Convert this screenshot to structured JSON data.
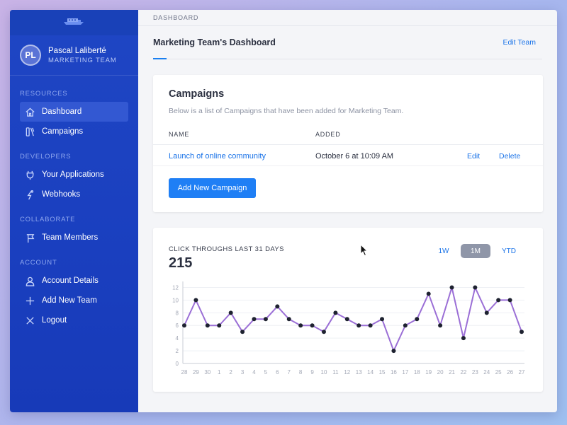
{
  "breadcrumb": "DASHBOARD",
  "profile": {
    "initials": "PL",
    "name": "Pascal Laliberté",
    "team": "MARKETING TEAM"
  },
  "sidebar": {
    "sections": [
      {
        "title": "RESOURCES",
        "items": [
          {
            "label": "Dashboard",
            "icon": "home-icon",
            "active": true
          },
          {
            "label": "Campaigns",
            "icon": "campaigns-icon"
          }
        ]
      },
      {
        "title": "DEVELOPERS",
        "items": [
          {
            "label": "Your Applications",
            "icon": "plug-icon"
          },
          {
            "label": "Webhooks",
            "icon": "webhook-icon"
          }
        ]
      },
      {
        "title": "COLLABORATE",
        "items": [
          {
            "label": "Team Members",
            "icon": "flag-icon"
          }
        ]
      },
      {
        "title": "ACCOUNT",
        "items": [
          {
            "label": "Account Details",
            "icon": "user-icon"
          },
          {
            "label": "Add New Team",
            "icon": "plus-icon"
          },
          {
            "label": "Logout",
            "icon": "close-icon"
          }
        ]
      }
    ]
  },
  "header": {
    "title": "Marketing Team's Dashboard",
    "edit_team": "Edit Team"
  },
  "campaigns": {
    "title": "Campaigns",
    "subtitle": "Below is a list of Campaigns that have been added for Marketing Team.",
    "columns": [
      "NAME",
      "ADDED"
    ],
    "rows": [
      {
        "name": "Launch of online community",
        "added": "October 6 at 10:09 AM",
        "edit": "Edit",
        "delete": "Delete"
      }
    ],
    "add_button": "Add New Campaign"
  },
  "clicks": {
    "label": "CLICK THROUGHS LAST 31 DAYS",
    "total": "215",
    "ranges": [
      "1W",
      "1M",
      "YTD"
    ],
    "active_range": "1M"
  },
  "colors": {
    "accent": "#1a73e8",
    "sidebar": "#1a3fbf",
    "line": "#9b6fd6",
    "button": "#1f7ff5"
  },
  "chart_data": {
    "type": "line",
    "x": [
      "28",
      "29",
      "30",
      "1",
      "2",
      "3",
      "4",
      "5",
      "6",
      "7",
      "8",
      "9",
      "10",
      "11",
      "12",
      "13",
      "14",
      "15",
      "16",
      "17",
      "18",
      "19",
      "20",
      "21",
      "22",
      "23",
      "24",
      "25",
      "26",
      "27"
    ],
    "series": [
      {
        "values": [
          6,
          10,
          6,
          6,
          8,
          5,
          7,
          7,
          9,
          7,
          6,
          6,
          5,
          8,
          7,
          6,
          6,
          7,
          2,
          6,
          7,
          11,
          6,
          12,
          4,
          12,
          8,
          10,
          10,
          5
        ]
      }
    ],
    "yticks": [
      0,
      2,
      4,
      6,
      8,
      10,
      12
    ],
    "ylim": [
      0,
      12.5
    ],
    "grid": true
  }
}
